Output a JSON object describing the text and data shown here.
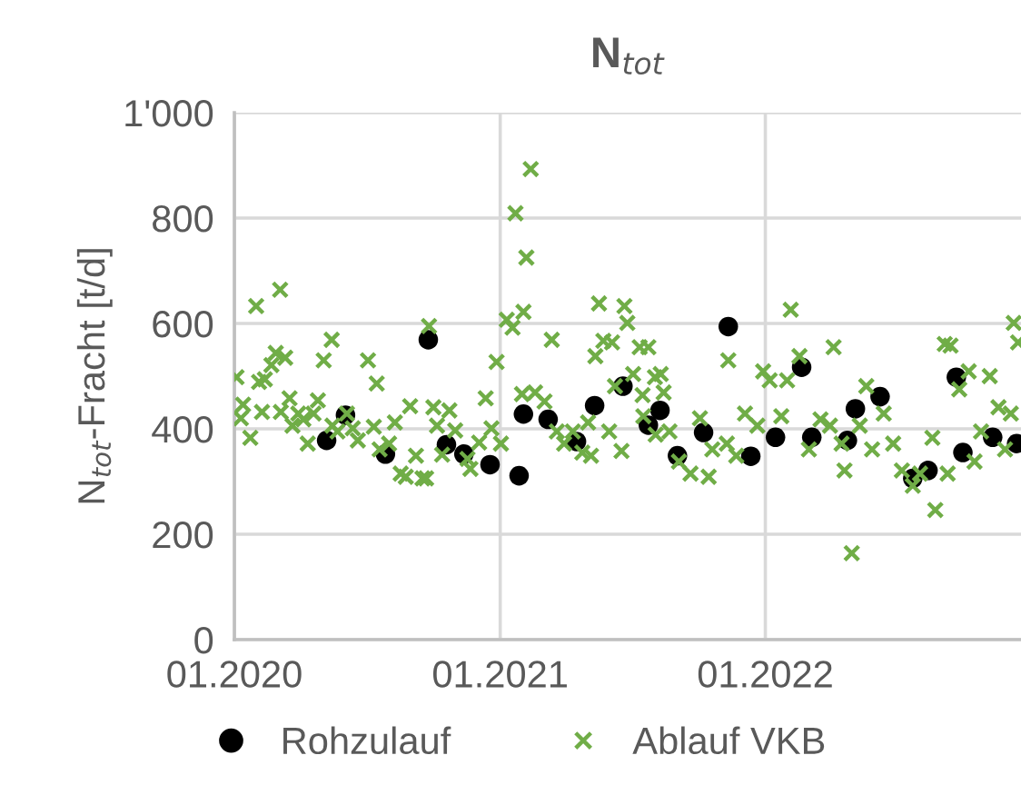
{
  "chart_data": {
    "type": "scatter",
    "title": "N$_{tot}$",
    "ylabel": "N$_{tot}$-Fracht [t/d]",
    "xlim": [
      "2020-01-01",
      "2022-12-19"
    ],
    "xticks": [
      {
        "value": "2020-01-01",
        "label": "01.2020"
      },
      {
        "value": "2021-01-01",
        "label": "01.2021"
      },
      {
        "value": "2022-01-01",
        "label": "01.2022"
      }
    ],
    "ylim": [
      0,
      1000
    ],
    "yticks": [
      0,
      200,
      400,
      600,
      800,
      {
        "value": 1000,
        "label": "1'000"
      }
    ],
    "grid": true,
    "legend": "bottom",
    "series": [
      {
        "name": "Rohzulauf",
        "color": "#000000",
        "marker": "circle",
        "x": [
          "2020-05-07",
          "2020-06-02",
          "2020-07-27",
          "2020-09-24",
          "2020-10-19",
          "2020-11-12",
          "2020-12-18",
          "2021-01-27",
          "2021-02-02",
          "2021-03-08",
          "2021-04-16",
          "2021-05-11",
          "2021-06-19",
          "2021-07-24",
          "2021-08-09",
          "2021-09-02",
          "2021-10-08",
          "2021-11-11",
          "2021-12-12",
          "2022-01-15",
          "2022-02-20",
          "2022-03-06",
          "2022-04-24",
          "2022-05-05",
          "2022-06-08",
          "2022-07-23",
          "2022-08-13",
          "2022-09-21",
          "2022-09-30",
          "2022-11-10",
          "2022-12-13"
        ],
        "values": [
          378,
          426,
          352,
          569,
          370,
          352,
          332,
          311,
          428,
          418,
          376,
          444,
          481,
          407,
          435,
          349,
          393,
          594,
          348,
          384,
          517,
          384,
          378,
          438,
          461,
          306,
          321,
          498,
          355,
          384,
          372
        ]
      },
      {
        "name": "Ablauf VKB",
        "color": "#70ad47",
        "marker": "cross",
        "x": [
          "2020-01-04",
          "2020-01-13",
          "2020-01-10",
          "2020-01-23",
          "2020-01-31",
          "2020-02-04",
          "2020-02-08",
          "2020-02-12",
          "2020-02-21",
          "2020-02-27",
          "2020-03-04",
          "2020-03-05",
          "2020-03-11",
          "2020-03-17",
          "2020-03-21",
          "2020-03-29",
          "2020-04-05",
          "2020-04-11",
          "2020-04-19",
          "2020-04-25",
          "2020-05-03",
          "2020-05-14",
          "2020-05-15",
          "2020-05-22",
          "2020-06-04",
          "2020-06-12",
          "2020-06-19",
          "2020-07-03",
          "2020-07-11",
          "2020-07-15",
          "2020-07-19",
          "2020-08-01",
          "2020-08-09",
          "2020-08-17",
          "2020-08-24",
          "2020-08-30",
          "2020-09-07",
          "2020-09-16",
          "2020-09-21",
          "2020-09-25",
          "2020-10-01",
          "2020-10-06",
          "2020-10-13",
          "2020-10-23",
          "2020-10-31",
          "2020-11-17",
          "2020-11-21",
          "2020-12-03",
          "2020-12-12",
          "2020-12-20",
          "2020-12-27",
          "2021-01-02",
          "2021-01-10",
          "2021-01-18",
          "2021-01-22",
          "2021-01-31",
          "2021-02-02",
          "2021-02-06",
          "2021-02-12",
          "2021-02-18",
          "2021-03-03",
          "2021-03-13",
          "2021-03-20",
          "2021-03-30",
          "2021-04-11",
          "2021-04-24",
          "2021-05-02",
          "2021-05-06",
          "2021-05-12",
          "2021-05-17",
          "2021-05-23",
          "2021-05-31",
          "2021-06-04",
          "2021-06-08",
          "2021-06-17",
          "2021-06-21",
          "2021-06-25",
          "2021-07-03",
          "2021-07-12",
          "2021-07-16",
          "2021-07-17",
          "2021-07-24",
          "2021-08-02",
          "2021-08-03",
          "2021-08-10",
          "2021-08-14",
          "2021-08-22",
          "2021-09-04",
          "2021-09-20",
          "2021-10-03",
          "2021-10-15",
          "2021-10-20",
          "2021-11-09",
          "2021-11-11",
          "2021-11-22",
          "2021-12-04",
          "2021-12-21",
          "2021-12-29",
          "2022-01-07",
          "2022-01-23",
          "2022-01-31",
          "2022-02-05",
          "2022-02-17",
          "2022-03-02",
          "2022-03-18",
          "2022-03-31",
          "2022-04-05",
          "2022-04-16",
          "2022-04-20",
          "2022-04-30",
          "2022-05-11",
          "2022-05-20",
          "2022-05-28",
          "2022-06-13",
          "2022-06-26",
          "2022-07-08",
          "2022-07-23",
          "2022-08-02",
          "2022-08-19",
          "2022-08-23",
          "2022-09-05",
          "2022-09-09",
          "2022-09-13",
          "2022-09-25",
          "2022-10-08",
          "2022-10-16",
          "2022-10-25",
          "2022-11-06",
          "2022-11-18",
          "2022-11-27",
          "2022-12-05",
          "2022-12-09",
          "2022-12-15"
        ],
        "values": [
          498,
          446,
          420,
          383,
          633,
          489,
          432,
          494,
          521,
          544,
          664,
          432,
          535,
          458,
          406,
          429,
          418,
          372,
          429,
          454,
          530,
          569,
          406,
          395,
          429,
          401,
          378,
          530,
          404,
          486,
          361,
          372,
          412,
          315,
          309,
          443,
          349,
          306,
          306,
          595,
          441,
          406,
          351,
          435,
          397,
          343,
          324,
          374,
          458,
          401,
          527,
          372,
          607,
          592,
          809,
          466,
          622,
          725,
          893,
          469,
          452,
          569,
          395,
          372,
          395,
          355,
          412,
          349,
          538,
          638,
          567,
          395,
          564,
          481,
          358,
          633,
          601,
          504,
          555,
          464,
          424,
          555,
          498,
          389,
          504,
          469,
          395,
          338,
          315,
          420,
          309,
          361,
          372,
          530,
          349,
          429,
          406,
          509,
          492,
          424,
          492,
          626,
          538,
          361,
          418,
          406,
          555,
          372,
          321,
          164,
          406,
          481,
          361,
          429,
          372,
          321,
          292,
          315,
          383,
          246,
          561,
          315,
          558,
          475,
          509,
          338,
          395,
          500,
          441,
          361,
          429,
          601,
          564
        ]
      }
    ]
  }
}
